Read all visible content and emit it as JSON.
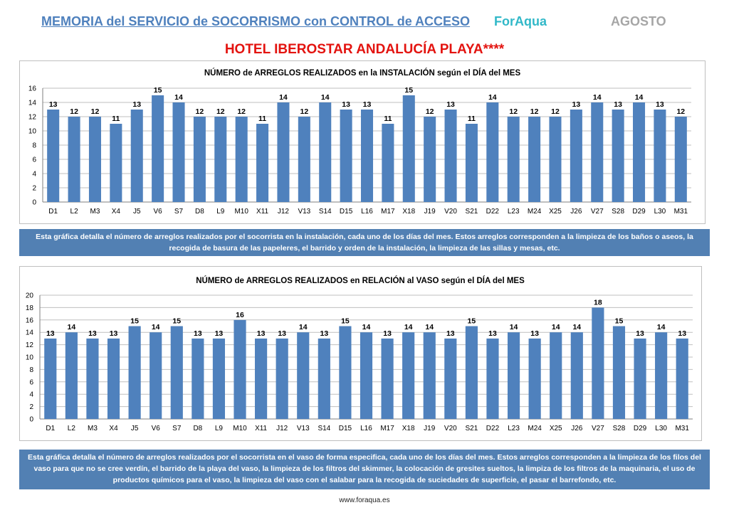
{
  "header": {
    "memoria_title": "MEMORIA del SERVICIO de SOCORRISMO con CONTROL de ACCESO",
    "brand": "ForAqua",
    "month": "AGOSTO",
    "hotel_title": "HOTEL IBEROSTAR ANDALUCÍA PLAYA****"
  },
  "colors": {
    "bar": "#4f81bd",
    "grid": "#bfbfbf",
    "title_link": "#4f81bd",
    "brand": "#31b8c8",
    "month": "#a6a6a6",
    "hotel": "#e3130f",
    "info_box": "#5280b3"
  },
  "chart_data": [
    {
      "type": "bar",
      "title": "NÚMERO de ARREGLOS REALIZADOS en la INSTALACIÓN según el DÍA del MES",
      "categories": [
        "D1",
        "L2",
        "M3",
        "X4",
        "J5",
        "V6",
        "S7",
        "D8",
        "L9",
        "M10",
        "X11",
        "J12",
        "V13",
        "S14",
        "D15",
        "L16",
        "M17",
        "X18",
        "J19",
        "V20",
        "S21",
        "D22",
        "L23",
        "M24",
        "X25",
        "J26",
        "V27",
        "S28",
        "D29",
        "L30",
        "M31"
      ],
      "values": [
        13,
        12,
        12,
        11,
        13,
        15,
        14,
        12,
        12,
        12,
        11,
        14,
        12,
        14,
        13,
        13,
        11,
        15,
        12,
        13,
        11,
        14,
        12,
        12,
        12,
        13,
        14,
        13,
        14,
        13,
        12
      ],
      "ylim": [
        0,
        16
      ],
      "yticks": [
        0,
        2,
        4,
        6,
        8,
        10,
        12,
        14,
        16
      ],
      "xlabel": "",
      "ylabel": "",
      "grid": true,
      "data_labels": true,
      "legend": false
    },
    {
      "type": "bar",
      "title": "NÚMERO de ARREGLOS REALIZADOS en RELACIÓN al VASO según el DÍA del MES",
      "categories": [
        "D1",
        "L2",
        "M3",
        "X4",
        "J5",
        "V6",
        "S7",
        "D8",
        "L9",
        "M10",
        "X11",
        "J12",
        "V13",
        "S14",
        "D15",
        "L16",
        "M17",
        "X18",
        "J19",
        "V20",
        "S21",
        "D22",
        "L23",
        "M24",
        "X25",
        "J26",
        "V27",
        "S28",
        "D29",
        "L30",
        "M31"
      ],
      "values": [
        13,
        14,
        13,
        13,
        15,
        14,
        15,
        13,
        13,
        16,
        13,
        13,
        14,
        13,
        15,
        14,
        13,
        14,
        14,
        13,
        15,
        13,
        14,
        13,
        14,
        14,
        18,
        15,
        13,
        14,
        13
      ],
      "ylim": [
        0,
        20
      ],
      "yticks": [
        0,
        2,
        4,
        6,
        8,
        10,
        12,
        14,
        16,
        18,
        20
      ],
      "xlabel": "",
      "ylabel": "",
      "grid": true,
      "data_labels": true,
      "legend": false
    }
  ],
  "info": {
    "text1": "Esta gráfica detalla el número de arreglos realizados por el socorrista en la instalación, cada uno de los días del mes. Estos arreglos corresponden a la limpieza de los baños o aseos, la recogida de basura de las papeleres, el barrido y orden de la instalación, la limpieza de las sillas y mesas, etc.",
    "text2": "Esta gráfica detalla el número de arreglos realizados por el socorrista en el vaso de forma especifica, cada uno de los días del mes. Estos arreglos corresponden a la limpieza de los filos del vaso para que no se cree verdín, el barrido de la playa del vaso, la limpieza de los filtros del skimmer, la colocación de gresites sueltos, la limpiza de los filtros de la maquinaria, el uso de productos químicos para el vaso, la limpieza del vaso con el salabar para la recogida de suciedades de superficie, el pasar el barrefondo, etc."
  },
  "footer": {
    "url": "www.foraqua.es"
  }
}
